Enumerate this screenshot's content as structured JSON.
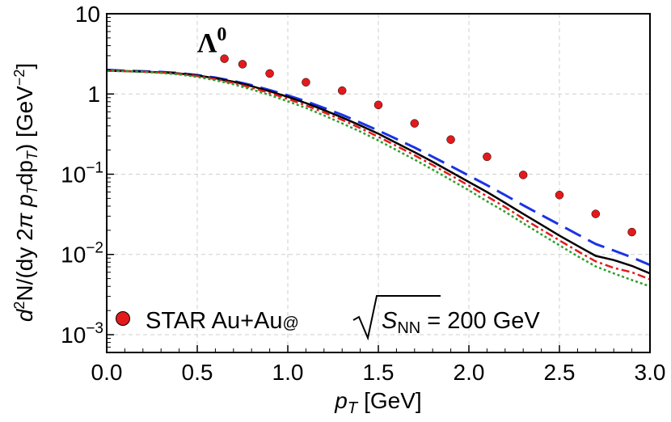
{
  "chart_data": {
    "type": "line",
    "annotation": "Λ",
    "annotation_sup": "0",
    "xlabel": "p",
    "xlabel_sub": "T",
    "xlabel_unit": "[GeV]",
    "ylabel": "d²N/(dy 2π p_T dp_T) [GeV⁻²]",
    "xlim": [
      0.0,
      3.0
    ],
    "ylim": [
      0.0006,
      10
    ],
    "y_scale": "log",
    "grid": true,
    "x_ticks": [
      "0.0",
      "0.5",
      "1.0",
      "1.5",
      "2.0",
      "2.5",
      "3.0"
    ],
    "y_ticks": [
      {
        "value": 10,
        "base": "10",
        "exp": ""
      },
      {
        "value": 1,
        "base": "1",
        "exp": ""
      },
      {
        "value": 0.1,
        "base": "10",
        "exp": "−1"
      },
      {
        "value": 0.01,
        "base": "10",
        "exp": "−2"
      },
      {
        "value": 0.001,
        "base": "10",
        "exp": "−3"
      }
    ],
    "legend": {
      "placement": "bottom-left",
      "text_main": "STAR Au+Au",
      "text_at": "@",
      "text_s": "S",
      "text_sub": "NN",
      "text_tail": " = 200 GeV"
    },
    "series": [
      {
        "name": "STAR Au+Au@√SNN = 200 GeV",
        "style": "points",
        "color": "#e31a1c",
        "x": [
          0.65,
          0.75,
          0.9,
          1.1,
          1.3,
          1.5,
          1.7,
          1.9,
          2.1,
          2.3,
          2.5,
          2.7,
          2.9
        ],
        "y": [
          2.75,
          2.35,
          1.8,
          1.4,
          1.1,
          0.73,
          0.43,
          0.27,
          0.165,
          0.098,
          0.055,
          0.032,
          0.019
        ]
      },
      {
        "style": "dashed",
        "color": "#1a33e6",
        "x": [
          0.0,
          0.1,
          0.2,
          0.3,
          0.4,
          0.5,
          0.6,
          0.7,
          0.8,
          0.9,
          1.0,
          1.1,
          1.2,
          1.3,
          1.4,
          1.5,
          1.6,
          1.7,
          1.8,
          1.9,
          2.0,
          2.1,
          2.2,
          2.3,
          2.4,
          2.5,
          2.6,
          2.7,
          2.8,
          2.9,
          3.0
        ],
        "y": [
          2.0,
          1.95,
          1.92,
          1.88,
          1.82,
          1.72,
          1.6,
          1.45,
          1.29,
          1.12,
          0.96,
          0.81,
          0.67,
          0.55,
          0.44,
          0.35,
          0.275,
          0.215,
          0.165,
          0.126,
          0.096,
          0.073,
          0.055,
          0.041,
          0.031,
          0.0235,
          0.0178,
          0.0135,
          0.0112,
          0.0092,
          0.0074
        ]
      },
      {
        "style": "solid",
        "color": "#000000",
        "x": [
          0.0,
          0.1,
          0.2,
          0.3,
          0.4,
          0.5,
          0.6,
          0.7,
          0.8,
          0.9,
          1.0,
          1.1,
          1.2,
          1.3,
          1.4,
          1.5,
          1.6,
          1.7,
          1.8,
          1.9,
          2.0,
          2.1,
          2.2,
          2.3,
          2.4,
          2.5,
          2.6,
          2.7,
          2.8,
          2.9,
          3.0
        ],
        "y": [
          1.95,
          1.93,
          1.9,
          1.86,
          1.8,
          1.7,
          1.57,
          1.42,
          1.25,
          1.08,
          0.92,
          0.77,
          0.63,
          0.51,
          0.405,
          0.32,
          0.245,
          0.188,
          0.143,
          0.107,
          0.08,
          0.06,
          0.044,
          0.032,
          0.0235,
          0.0172,
          0.0128,
          0.0096,
          0.0085,
          0.0072,
          0.0058
        ]
      },
      {
        "style": "dash-dot",
        "color": "#e31a1c",
        "x": [
          0.0,
          0.1,
          0.2,
          0.3,
          0.4,
          0.5,
          0.6,
          0.7,
          0.8,
          0.9,
          1.0,
          1.1,
          1.2,
          1.3,
          1.4,
          1.5,
          1.6,
          1.7,
          1.8,
          1.9,
          2.0,
          2.1,
          2.2,
          2.3,
          2.4,
          2.5,
          2.6,
          2.7,
          2.8,
          2.9,
          3.0
        ],
        "y": [
          1.95,
          1.92,
          1.89,
          1.85,
          1.78,
          1.67,
          1.53,
          1.37,
          1.2,
          1.03,
          0.87,
          0.72,
          0.59,
          0.475,
          0.375,
          0.293,
          0.225,
          0.172,
          0.13,
          0.097,
          0.072,
          0.053,
          0.039,
          0.028,
          0.0205,
          0.015,
          0.011,
          0.0082,
          0.0068,
          0.006,
          0.0049
        ]
      },
      {
        "style": "dotted",
        "color": "#2ca02c",
        "x": [
          0.0,
          0.1,
          0.2,
          0.3,
          0.4,
          0.5,
          0.6,
          0.7,
          0.8,
          0.9,
          1.0,
          1.1,
          1.2,
          1.3,
          1.4,
          1.5,
          1.6,
          1.7,
          1.8,
          1.9,
          2.0,
          2.1,
          2.2,
          2.3,
          2.4,
          2.5,
          2.6,
          2.7,
          2.8,
          2.9,
          3.0
        ],
        "y": [
          1.95,
          1.92,
          1.88,
          1.83,
          1.75,
          1.63,
          1.48,
          1.32,
          1.14,
          0.97,
          0.81,
          0.67,
          0.54,
          0.43,
          0.34,
          0.263,
          0.2,
          0.152,
          0.114,
          0.085,
          0.063,
          0.046,
          0.034,
          0.0245,
          0.0178,
          0.013,
          0.0095,
          0.0071,
          0.0058,
          0.0048,
          0.004
        ]
      }
    ]
  }
}
